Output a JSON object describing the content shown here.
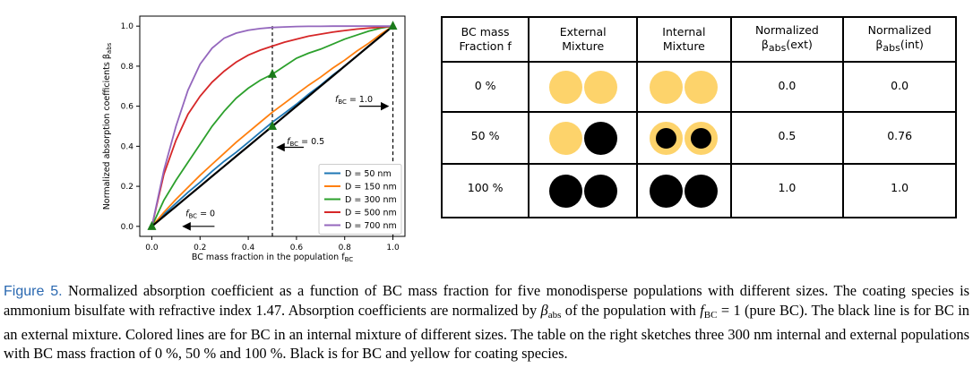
{
  "chart_data": {
    "type": "line",
    "title": "",
    "xlabel": "BC mass fraction in the population f",
    "xlabel_sub": "BC",
    "ylabel": "Normalized absorption coefficients β",
    "ylabel_sub": "abs",
    "xlim": [
      -0.05,
      1.05
    ],
    "ylim": [
      -0.05,
      1.05
    ],
    "xticks": [
      "0.0",
      "0.2",
      "0.4",
      "0.6",
      "0.8",
      "1.0"
    ],
    "yticks": [
      "0.0",
      "0.2",
      "0.4",
      "0.6",
      "0.8",
      "1.0"
    ],
    "grid": false,
    "legend_position": "lower-right",
    "x": [
      0,
      0.05,
      0.1,
      0.15,
      0.2,
      0.25,
      0.3,
      0.35,
      0.4,
      0.45,
      0.5,
      0.55,
      0.6,
      0.65,
      0.7,
      0.75,
      0.8,
      0.85,
      0.9,
      0.95,
      1.0
    ],
    "series": [
      {
        "name": "D = 50 nm",
        "color": "#1f77b4",
        "values": [
          0,
          0.06,
          0.115,
          0.17,
          0.22,
          0.275,
          0.325,
          0.37,
          0.42,
          0.47,
          0.52,
          0.565,
          0.61,
          0.66,
          0.705,
          0.755,
          0.8,
          0.85,
          0.9,
          0.95,
          1.0
        ]
      },
      {
        "name": "D = 150 nm",
        "color": "#ff7f0e",
        "values": [
          0,
          0.07,
          0.135,
          0.195,
          0.255,
          0.31,
          0.365,
          0.42,
          0.47,
          0.52,
          0.57,
          0.615,
          0.66,
          0.705,
          0.745,
          0.79,
          0.83,
          0.875,
          0.915,
          0.96,
          1.0
        ]
      },
      {
        "name": "D = 300 nm",
        "color": "#2ca02c",
        "values": [
          0,
          0.13,
          0.23,
          0.32,
          0.41,
          0.5,
          0.575,
          0.64,
          0.69,
          0.73,
          0.76,
          0.8,
          0.84,
          0.865,
          0.885,
          0.91,
          0.935,
          0.955,
          0.975,
          0.99,
          1.0
        ]
      },
      {
        "name": "D = 500 nm",
        "color": "#d62728",
        "values": [
          0,
          0.26,
          0.43,
          0.56,
          0.65,
          0.72,
          0.775,
          0.82,
          0.855,
          0.88,
          0.9,
          0.92,
          0.935,
          0.95,
          0.96,
          0.97,
          0.978,
          0.985,
          0.99,
          0.995,
          1.0
        ]
      },
      {
        "name": "D = 700 nm",
        "color": "#9467bd",
        "values": [
          0,
          0.28,
          0.5,
          0.68,
          0.81,
          0.89,
          0.94,
          0.965,
          0.98,
          0.988,
          0.993,
          0.996,
          0.998,
          0.999,
          0.999,
          1.0,
          1.0,
          1.0,
          1.0,
          1.0,
          1.0
        ]
      },
      {
        "name": "",
        "color": "#000000",
        "values": [
          0,
          0.05,
          0.1,
          0.15,
          0.2,
          0.25,
          0.3,
          0.35,
          0.4,
          0.45,
          0.5,
          0.55,
          0.6,
          0.65,
          0.7,
          0.75,
          0.8,
          0.85,
          0.9,
          0.95,
          1.0
        ]
      }
    ],
    "markers": [
      {
        "x": 0.0,
        "y": 0.0,
        "color": "#1a7a1a"
      },
      {
        "x": 0.5,
        "y": 0.5,
        "color": "#1a7a1a"
      },
      {
        "x": 0.5,
        "y": 0.76,
        "color": "#1a7a1a"
      },
      {
        "x": 1.0,
        "y": 1.0,
        "color": "#1a7a1a"
      }
    ],
    "vlines": [
      0.5,
      1.0
    ],
    "annotations": [
      {
        "prefix": "f",
        "sub": "BC",
        "suffix": " = 0",
        "x": 0.14,
        "y": 0.05
      },
      {
        "prefix": "f",
        "sub": "BC",
        "suffix": " = 0.5",
        "x": 0.56,
        "y": 0.41
      },
      {
        "prefix": "f",
        "sub": "BC",
        "suffix": " = 1.0",
        "x": 0.76,
        "y": 0.62
      }
    ]
  },
  "table": {
    "headers": [
      {
        "line1": "BC mass",
        "line2": "Fraction f"
      },
      {
        "line1": "External",
        "line2": "Mixture"
      },
      {
        "line1": "Internal",
        "line2": "Mixture"
      },
      {
        "line1": "Normalized",
        "line2_pre": "β",
        "line2_sub": "abs",
        "line2_post": "(ext)"
      },
      {
        "line1": "Normalized",
        "line2_pre": "β",
        "line2_sub": "abs",
        "line2_post": "(int)"
      }
    ],
    "rows": [
      {
        "fraction": "0 %",
        "external": [
          "yellow",
          "yellow"
        ],
        "internal": [
          "yellow",
          "yellow"
        ],
        "ext": "0.0",
        "int": "0.0"
      },
      {
        "fraction": "50 %",
        "external": [
          "yellow",
          "black"
        ],
        "internal": [
          "coated",
          "coated"
        ],
        "ext": "0.5",
        "int": "0.76"
      },
      {
        "fraction": "100 %",
        "external": [
          "black",
          "black"
        ],
        "internal": [
          "black",
          "black"
        ],
        "ext": "1.0",
        "int": "1.0"
      }
    ]
  },
  "caption": {
    "label": "Figure 5.",
    "text1": " Normalized absorption coefficient as a function of BC mass fraction for five monodisperse populations with different sizes. The coating species is ammonium bisulfate with refractive index 1.47. Absorption coefficients are normalized by ",
    "beta": "β",
    "beta_sub": "abs",
    "text2": " of the population with ",
    "f": "f",
    "f_sub": "BC",
    "text3": " = 1 (pure BC). The black line is for BC in an external mixture. Colored lines are for BC in an internal mixture of different sizes. The table on the right sketches three 300 nm internal and external populations with BC mass fraction of 0 %, 50 % and 100 %. Black is for BC and yellow for coating species."
  }
}
